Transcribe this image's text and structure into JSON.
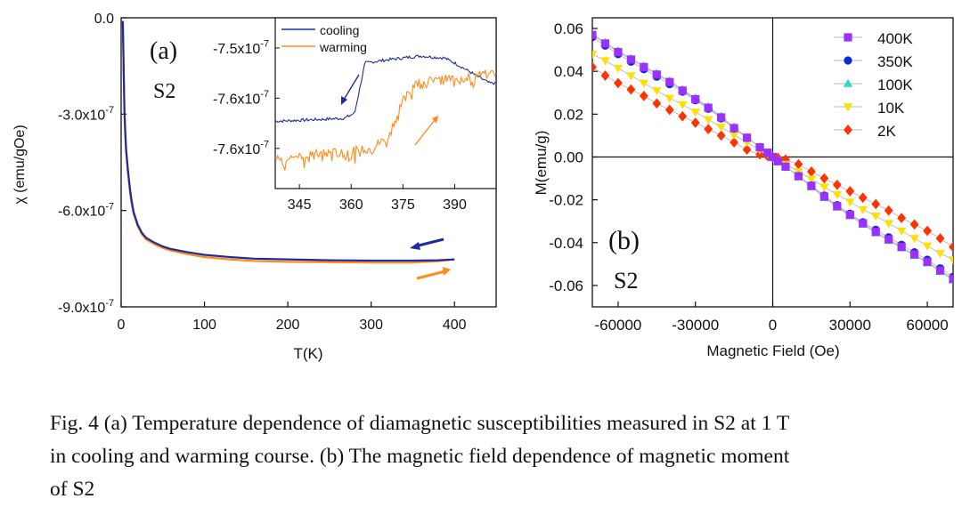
{
  "colors": {
    "cooling": "#1f2a9e",
    "warming": "#ff8c1a",
    "axis": "#111111",
    "s400": "#9b30ff",
    "s350": "#0a2bd6",
    "s100": "#33d6c8",
    "s10": "#ffe000",
    "s2": "#ff3300"
  },
  "caption": {
    "line1": "Fig. 4 (a) Temperature dependence of diamagnetic susceptibilities measured in S2 at 1 T",
    "line2": "in cooling and warming course. (b) The magnetic field dependence of magnetic moment",
    "line3": "of S2"
  },
  "chart_data": [
    {
      "id": "a-main",
      "type": "line",
      "panel_label": "(a)",
      "sample_label": "S2",
      "xlabel": "T(K)",
      "ylabel": "χ (emu/gOe)",
      "xlim": [
        0,
        450
      ],
      "ylim": [
        -9e-07,
        0
      ],
      "xticks": [
        0,
        100,
        200,
        300,
        400
      ],
      "yticks": [
        {
          "value": 0,
          "label": "0.0"
        },
        {
          "value": -3e-07,
          "label": "-3.0x10-7"
        },
        {
          "value": -6e-07,
          "label": "-6.0x10-7"
        },
        {
          "value": -9e-07,
          "label": "-9.0x10-7"
        }
      ],
      "series": [
        {
          "name": "cooling",
          "color": "#1f2a9e",
          "x": [
            2,
            3,
            4,
            5,
            6,
            8,
            10,
            12,
            15,
            20,
            25,
            30,
            40,
            50,
            60,
            80,
            100,
            130,
            160,
            200,
            250,
            300,
            350,
            380,
            400
          ],
          "y": [
            -1e-08,
            -1.5e-07,
            -2.9e-07,
            -3.6e-07,
            -4.1e-07,
            -4.7e-07,
            -5.2e-07,
            -5.6e-07,
            -6.05e-07,
            -6.45e-07,
            -6.7e-07,
            -6.85e-07,
            -7e-07,
            -7.12e-07,
            -7.2e-07,
            -7.3e-07,
            -7.38e-07,
            -7.45e-07,
            -7.5e-07,
            -7.52e-07,
            -7.55e-07,
            -7.56e-07,
            -7.56e-07,
            -7.55e-07,
            -7.52e-07
          ]
        },
        {
          "name": "warming",
          "color": "#ff8c1a",
          "x": [
            2,
            3,
            4,
            5,
            6,
            8,
            10,
            12,
            15,
            20,
            25,
            30,
            40,
            50,
            60,
            80,
            100,
            130,
            160,
            200,
            250,
            300,
            350,
            380,
            400
          ],
          "y": [
            -1e-08,
            -1.6e-07,
            -3e-07,
            -3.7e-07,
            -4.2e-07,
            -4.8e-07,
            -5.3e-07,
            -5.7e-07,
            -6.1e-07,
            -6.5e-07,
            -6.75e-07,
            -6.9e-07,
            -7.05e-07,
            -7.17e-07,
            -7.25e-07,
            -7.36e-07,
            -7.45e-07,
            -7.52e-07,
            -7.57e-07,
            -7.6e-07,
            -7.61e-07,
            -7.62e-07,
            -7.62e-07,
            -7.58e-07,
            -7.52e-07
          ]
        }
      ]
    },
    {
      "id": "a-inset",
      "type": "line",
      "xlim": [
        338,
        402
      ],
      "ylim": [
        -7.64e-07,
        -7.47e-07
      ],
      "xticks": [
        345,
        360,
        375,
        390
      ],
      "yticks": [
        {
          "value": -7.5e-07,
          "label": "-7.5x10-7"
        },
        {
          "value": -7.55e-07,
          "label": "-7.6x10-7"
        },
        {
          "value": -7.6e-07,
          "label": "-7.6x10-7"
        }
      ],
      "legend": [
        "cooling",
        "warming"
      ],
      "series": [
        {
          "name": "cooling",
          "color": "#1f2a9e",
          "x": [
            338,
            345,
            352,
            358,
            361,
            362.5,
            364,
            370,
            380,
            387,
            390,
            395,
            400,
            402
          ],
          "y": [
            -7.573e-07,
            -7.572e-07,
            -7.571e-07,
            -7.57e-07,
            -7.565e-07,
            -7.54e-07,
            -7.515e-07,
            -7.512e-07,
            -7.508e-07,
            -7.51e-07,
            -7.515e-07,
            -7.525e-07,
            -7.535e-07,
            -7.535e-07
          ]
        },
        {
          "name": "warming",
          "color": "#ff8c1a",
          "x": [
            338,
            345,
            352,
            360,
            366,
            370,
            373,
            375,
            378,
            385,
            395,
            402
          ],
          "y": [
            -7.61e-07,
            -7.607e-07,
            -7.605e-07,
            -7.603e-07,
            -7.6e-07,
            -7.59e-07,
            -7.57e-07,
            -7.55e-07,
            -7.535e-07,
            -7.532e-07,
            -7.528e-07,
            -7.525e-07
          ]
        }
      ]
    },
    {
      "id": "b",
      "type": "scatter",
      "panel_label": "(b)",
      "sample_label": "S2",
      "xlabel": "Magnetic Field (Oe)",
      "ylabel": "M(emu/g)",
      "xlim": [
        -70000,
        70000
      ],
      "ylim": [
        -0.07,
        0.065
      ],
      "xticks": [
        {
          "value": -60000,
          "label": "-60000"
        },
        {
          "value": -30000,
          "label": "-30000"
        },
        {
          "value": 0,
          "label": "0"
        },
        {
          "value": 30000,
          "label": "30000"
        },
        {
          "value": 60000,
          "label": "60000"
        }
      ],
      "yticks": [
        {
          "value": 0.06,
          "label": "0.06"
        },
        {
          "value": 0.04,
          "label": "0.04"
        },
        {
          "value": 0.02,
          "label": "0.02"
        },
        {
          "value": 0.0,
          "label": "0.00"
        },
        {
          "value": -0.02,
          "label": "-0.02"
        },
        {
          "value": -0.04,
          "label": "-0.04"
        },
        {
          "value": -0.06,
          "label": "-0.06"
        }
      ],
      "x": [
        -70000,
        -65000,
        -60000,
        -55000,
        -50000,
        -45000,
        -40000,
        -35000,
        -30000,
        -25000,
        -20000,
        -15000,
        -10000,
        -5000,
        -2000,
        0,
        2000,
        5000,
        10000,
        15000,
        20000,
        25000,
        30000,
        35000,
        40000,
        45000,
        50000,
        55000,
        60000,
        65000,
        70000
      ],
      "series": [
        {
          "name": "400K",
          "marker": "square",
          "color": "#9b30ff",
          "y": [
            0.057,
            0.053,
            0.049,
            0.0455,
            0.042,
            0.0385,
            0.035,
            0.031,
            0.027,
            0.023,
            0.0185,
            0.0135,
            0.009,
            0.0045,
            0.002,
            0.0,
            -0.002,
            -0.0045,
            -0.009,
            -0.0135,
            -0.0185,
            -0.023,
            -0.027,
            -0.031,
            -0.035,
            -0.0385,
            -0.042,
            -0.0455,
            -0.049,
            -0.053,
            -0.057
          ]
        },
        {
          "name": "350K",
          "marker": "circle",
          "color": "#0a2bd6",
          "y": [
            0.056,
            0.052,
            0.048,
            0.0445,
            0.041,
            0.0375,
            0.034,
            0.0305,
            0.0265,
            0.0225,
            0.018,
            0.0133,
            0.0089,
            0.0045,
            0.0019,
            0.0,
            -0.0019,
            -0.0045,
            -0.0089,
            -0.0133,
            -0.018,
            -0.0225,
            -0.0265,
            -0.0305,
            -0.034,
            -0.0375,
            -0.041,
            -0.0445,
            -0.048,
            -0.052,
            -0.056
          ]
        },
        {
          "name": "100K",
          "marker": "triangle-up",
          "color": "#33d6c8",
          "y": [
            0.0575,
            0.0535,
            0.0495,
            0.046,
            0.0425,
            0.039,
            0.0355,
            0.0315,
            0.0275,
            0.0235,
            0.019,
            0.014,
            0.0092,
            0.0046,
            0.002,
            0.0,
            -0.002,
            -0.0046,
            -0.0092,
            -0.014,
            -0.019,
            -0.0235,
            -0.0275,
            -0.0315,
            -0.0355,
            -0.039,
            -0.0425,
            -0.046,
            -0.0495,
            -0.0535,
            -0.0575
          ]
        },
        {
          "name": "10K",
          "marker": "triangle-down",
          "color": "#ffe000",
          "y": [
            0.048,
            0.045,
            0.0415,
            0.038,
            0.0345,
            0.031,
            0.0275,
            0.0245,
            0.021,
            0.0175,
            0.014,
            0.0103,
            0.0068,
            0.0034,
            0.0015,
            0.0,
            -0.0015,
            -0.0034,
            -0.0068,
            -0.0103,
            -0.014,
            -0.0175,
            -0.021,
            -0.0245,
            -0.0275,
            -0.031,
            -0.0345,
            -0.038,
            -0.0415,
            -0.045,
            -0.048
          ]
        },
        {
          "name": "2K",
          "marker": "diamond",
          "color": "#ff3300",
          "y": [
            0.042,
            0.038,
            0.0345,
            0.0315,
            0.0285,
            0.025,
            0.022,
            0.019,
            0.016,
            0.013,
            0.01,
            0.0068,
            0.0034,
            0.0012,
            0.0004,
            0.0,
            -0.0004,
            -0.0012,
            -0.0034,
            -0.0068,
            -0.01,
            -0.013,
            -0.016,
            -0.019,
            -0.022,
            -0.025,
            -0.0285,
            -0.0315,
            -0.0345,
            -0.038,
            -0.042
          ]
        }
      ]
    }
  ]
}
